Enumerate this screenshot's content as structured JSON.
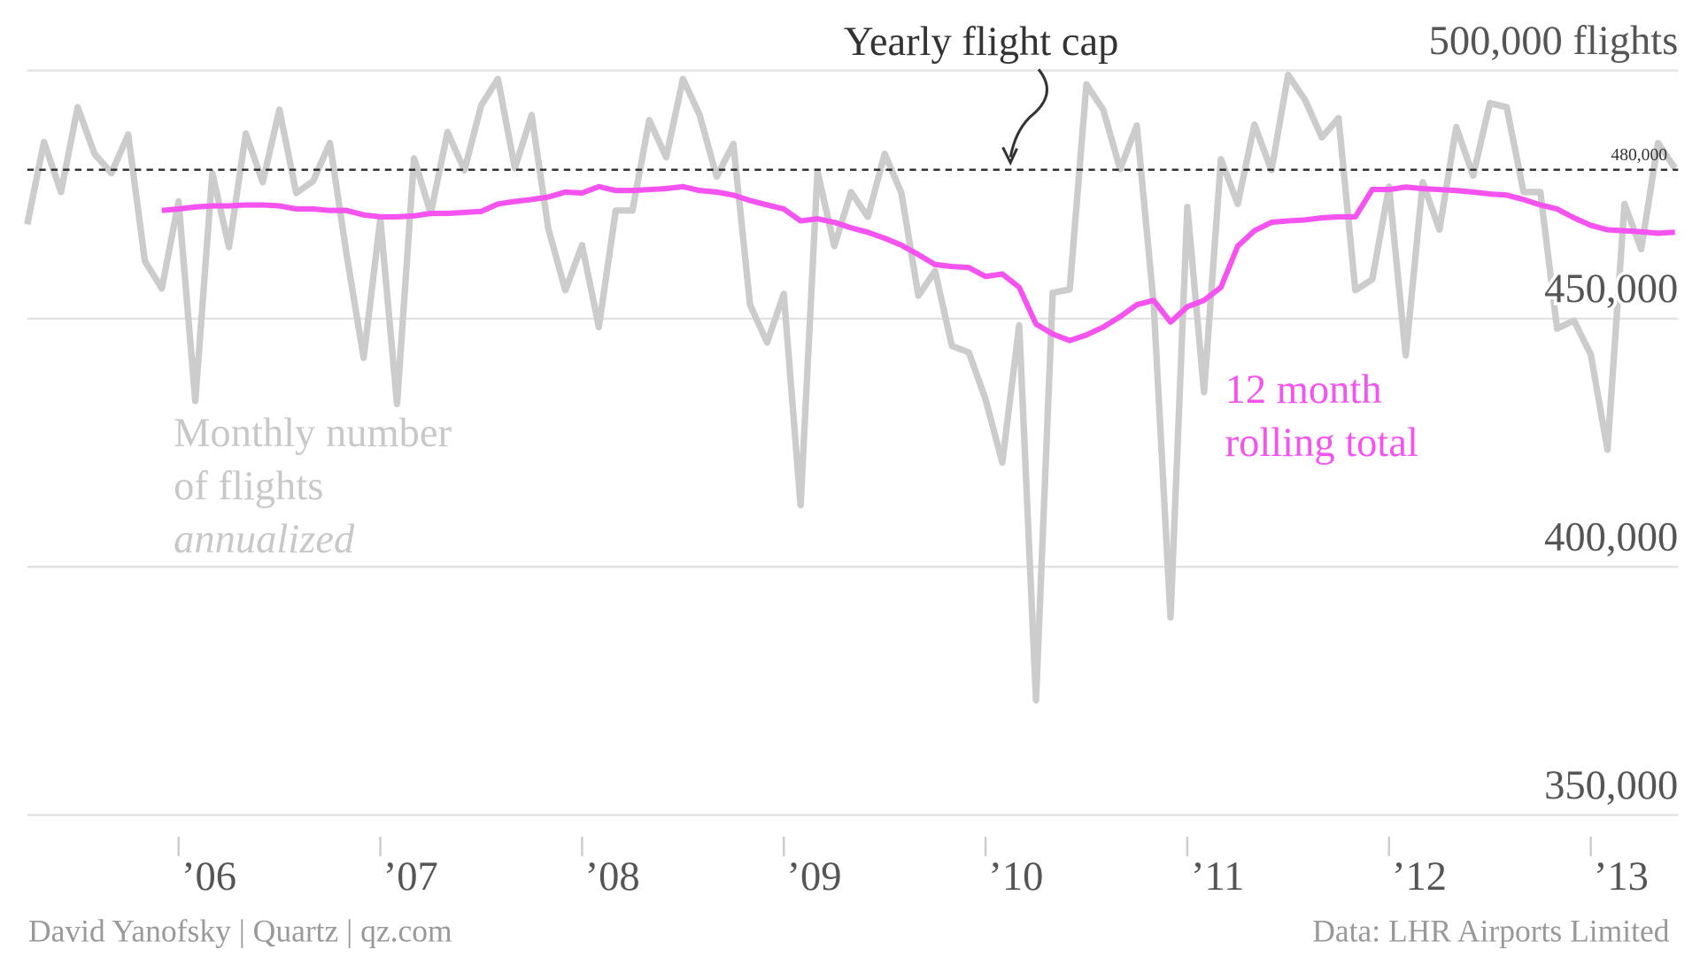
{
  "chart_data": {
    "type": "line",
    "x": [
      2005.25,
      2005.333,
      2005.417,
      2005.5,
      2005.583,
      2005.667,
      2005.75,
      2005.833,
      2005.917,
      2006,
      2006.083,
      2006.167,
      2006.25,
      2006.333,
      2006.417,
      2006.5,
      2006.583,
      2006.667,
      2006.75,
      2006.833,
      2006.917,
      2007,
      2007.083,
      2007.167,
      2007.25,
      2007.333,
      2007.417,
      2007.5,
      2007.583,
      2007.667,
      2007.75,
      2007.833,
      2007.917,
      2008,
      2008.083,
      2008.167,
      2008.25,
      2008.333,
      2008.417,
      2008.5,
      2008.583,
      2008.667,
      2008.75,
      2008.833,
      2008.917,
      2009,
      2009.083,
      2009.167,
      2009.25,
      2009.333,
      2009.417,
      2009.5,
      2009.583,
      2009.667,
      2009.75,
      2009.833,
      2009.917,
      2010,
      2010.083,
      2010.167,
      2010.25,
      2010.333,
      2010.417,
      2010.5,
      2010.583,
      2010.667,
      2010.75,
      2010.833,
      2010.917,
      2011,
      2011.083,
      2011.167,
      2011.25,
      2011.333,
      2011.417,
      2011.5,
      2011.583,
      2011.667,
      2011.75,
      2011.833,
      2011.917,
      2012,
      2012.083,
      2012.167,
      2012.25,
      2012.333,
      2012.417,
      2012.5,
      2012.583,
      2012.667,
      2012.75,
      2012.833,
      2012.917,
      2013,
      2013.083,
      2013.167,
      2013.25,
      2013.333,
      2013.417
    ],
    "series": [
      {
        "name": "Monthly number of flights annualized",
        "color": "#cccccc",
        "values": [
          469000,
          485600,
          475500,
          492600,
          483200,
          479300,
          487100,
          461600,
          456100,
          473600,
          433400,
          479300,
          464400,
          487300,
          477500,
          492100,
          475300,
          477700,
          485400,
          462900,
          442100,
          470100,
          432800,
          482300,
          471200,
          487600,
          479900,
          493000,
          498300,
          480300,
          491000,
          468100,
          455700,
          464800,
          448300,
          471800,
          471800,
          490000,
          482500,
          498300,
          491000,
          478600,
          485200,
          452800,
          445200,
          455000,
          412400,
          479700,
          464600,
          475500,
          470500,
          483200,
          475300,
          454600,
          459600,
          444500,
          443200,
          433800,
          421000,
          448700,
          373100,
          455200,
          455900,
          497200,
          492100,
          480100,
          488900,
          453100,
          389800,
          472500,
          435200,
          482100,
          473100,
          489100,
          479900,
          499100,
          494100,
          486500,
          490400,
          455700,
          457900,
          476600,
          442600,
          477500,
          467900,
          488600,
          478800,
          493400,
          492600,
          475500,
          475500,
          448000,
          449600,
          442800,
          423600,
          473100,
          464000,
          485400,
          480300
        ]
      },
      {
        "name": "12 month rolling total",
        "color": "#f553f0",
        "values": [
          null,
          null,
          null,
          null,
          null,
          null,
          null,
          null,
          471800,
          472100,
          472500,
          472700,
          472700,
          472900,
          472900,
          472700,
          472100,
          472100,
          471800,
          471800,
          470900,
          470500,
          470500,
          470700,
          471200,
          471200,
          471400,
          471600,
          473100,
          473600,
          474000,
          474500,
          475500,
          475300,
          476600,
          475800,
          475800,
          476000,
          476200,
          476600,
          475800,
          475500,
          474900,
          473800,
          472900,
          472100,
          469700,
          470100,
          469400,
          468300,
          467400,
          466200,
          464800,
          462900,
          460900,
          460500,
          460300,
          458500,
          459000,
          456300,
          448900,
          446900,
          445600,
          446700,
          448300,
          450400,
          452800,
          453700,
          449300,
          452400,
          453700,
          456300,
          464600,
          467700,
          469400,
          469700,
          469900,
          470300,
          470500,
          470500,
          476000,
          476000,
          476500,
          476200,
          476000,
          475800,
          475500,
          475100,
          474900,
          474000,
          472900,
          472100,
          470300,
          468800,
          467900,
          467700,
          467500,
          467200,
          467400
        ]
      }
    ],
    "xlim": [
      2005.25,
      2013.417
    ],
    "xticks": [
      {
        "value": 2006,
        "label": "’06"
      },
      {
        "value": 2007,
        "label": "’07"
      },
      {
        "value": 2008,
        "label": "’08"
      },
      {
        "value": 2009,
        "label": "’09"
      },
      {
        "value": 2010,
        "label": "’10"
      },
      {
        "value": 2011,
        "label": "’11"
      },
      {
        "value": 2012,
        "label": "’12"
      },
      {
        "value": 2013,
        "label": "’13"
      }
    ],
    "ylim": [
      350000,
      500000
    ],
    "yticks": [
      {
        "value": 350000,
        "label": "350,000"
      },
      {
        "value": 400000,
        "label": "400,000"
      },
      {
        "value": 450000,
        "label": "450,000"
      },
      {
        "value": 500000,
        "label": "500,000 flights"
      }
    ],
    "grid": true,
    "reference_line": {
      "value": 480000,
      "label": "480,000",
      "annotation": "Yearly flight cap"
    },
    "series_labels": [
      [
        "Monthly number",
        "of flights",
        "annualized"
      ],
      [
        "12 month",
        "rolling total"
      ]
    ],
    "credit": "David Yanofsky | Quartz | qz.com",
    "source": "Data: LHR Airports Limited"
  }
}
